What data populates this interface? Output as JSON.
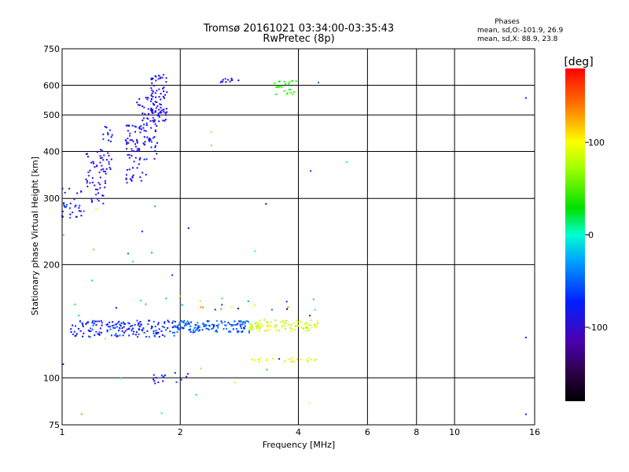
{
  "chart_data": {
    "type": "scatter",
    "title": "Tromsø 20161021 03:34:00-03:35:43",
    "subtitle": "RwPretec (8p)",
    "xlabel": "Frequency [MHz]",
    "ylabel": "Stationary phase Virtual Height [km]",
    "x_scale": "log",
    "y_scale": "log",
    "xlim": [
      1,
      16
    ],
    "ylim": [
      75,
      750
    ],
    "x_ticks": [
      1,
      2,
      4,
      6,
      8,
      10,
      16
    ],
    "y_ticks": [
      75,
      100,
      200,
      300,
      400,
      500,
      600,
      750
    ],
    "grid": true,
    "stats": {
      "heading": "Phases",
      "line_o": "mean, sd,O:-101.9, 26.9",
      "line_x": "mean, sd,X:  88.9, 23.8"
    },
    "colorbar": {
      "label": "[deg]",
      "range": [
        -180,
        180
      ],
      "ticks": [
        100,
        0,
        -100
      ],
      "tick_labels": [
        "100",
        "0",
        "-100"
      ]
    },
    "clusters": [
      {
        "x": [
          1.0,
          1.12
        ],
        "y": [
          265,
          320
        ],
        "phase": -105,
        "count": 30
      },
      {
        "x": [
          1.15,
          1.3
        ],
        "y": [
          290,
          400
        ],
        "phase": -115,
        "count": 50
      },
      {
        "x": [
          1.25,
          1.35
        ],
        "y": [
          350,
          480
        ],
        "phase": -110,
        "count": 25
      },
      {
        "x": [
          1.45,
          1.65
        ],
        "y": [
          330,
          470
        ],
        "phase": -115,
        "count": 70
      },
      {
        "x": [
          1.55,
          1.75
        ],
        "y": [
          380,
          560
        ],
        "phase": -110,
        "count": 60
      },
      {
        "x": [
          1.68,
          1.85
        ],
        "y": [
          480,
          640
        ],
        "phase": -115,
        "count": 80
      },
      {
        "x": [
          2.5,
          2.85
        ],
        "y": [
          600,
          630
        ],
        "phase": -110,
        "count": 12
      },
      {
        "x": [
          3.45,
          3.95
        ],
        "y": [
          565,
          620
        ],
        "phase": 40,
        "count": 25
      },
      {
        "x": [
          1.05,
          1.95
        ],
        "y": [
          128,
          142
        ],
        "phase": -100,
        "count": 170
      },
      {
        "x": [
          1.95,
          3.0
        ],
        "y": [
          132,
          142
        ],
        "phase": -85,
        "count": 130
      },
      {
        "x": [
          3.0,
          4.5
        ],
        "y": [
          133,
          143
        ],
        "phase": 95,
        "count": 90
      },
      {
        "x": [
          3.0,
          4.5
        ],
        "y": [
          110,
          113
        ],
        "phase": 100,
        "count": 25
      },
      {
        "x": [
          1.7,
          2.1
        ],
        "y": [
          96,
          104
        ],
        "phase": -110,
        "count": 16
      },
      {
        "x": [
          1.3,
          4.5
        ],
        "y": [
          150,
          165
        ],
        "phase": 0,
        "count": 20
      },
      {
        "x": [
          1.0,
          4.4
        ],
        "y": [
          80,
          300
        ],
        "phase": 0,
        "count": 30
      }
    ],
    "points": [
      {
        "x": 15.2,
        "y": 555,
        "phase": -100
      },
      {
        "x": 15.2,
        "y": 128,
        "phase": -100
      },
      {
        "x": 15.2,
        "y": 80,
        "phase": -100
      },
      {
        "x": 4.5,
        "y": 610,
        "phase": -80
      },
      {
        "x": 4.3,
        "y": 355,
        "phase": -90
      },
      {
        "x": 5.3,
        "y": 375,
        "phase": -30
      },
      {
        "x": 2.1,
        "y": 250,
        "phase": -100
      },
      {
        "x": 1.6,
        "y": 245,
        "phase": -100
      },
      {
        "x": 2.4,
        "y": 415,
        "phase": 60
      },
      {
        "x": 2.4,
        "y": 450,
        "phase": 80
      }
    ]
  }
}
